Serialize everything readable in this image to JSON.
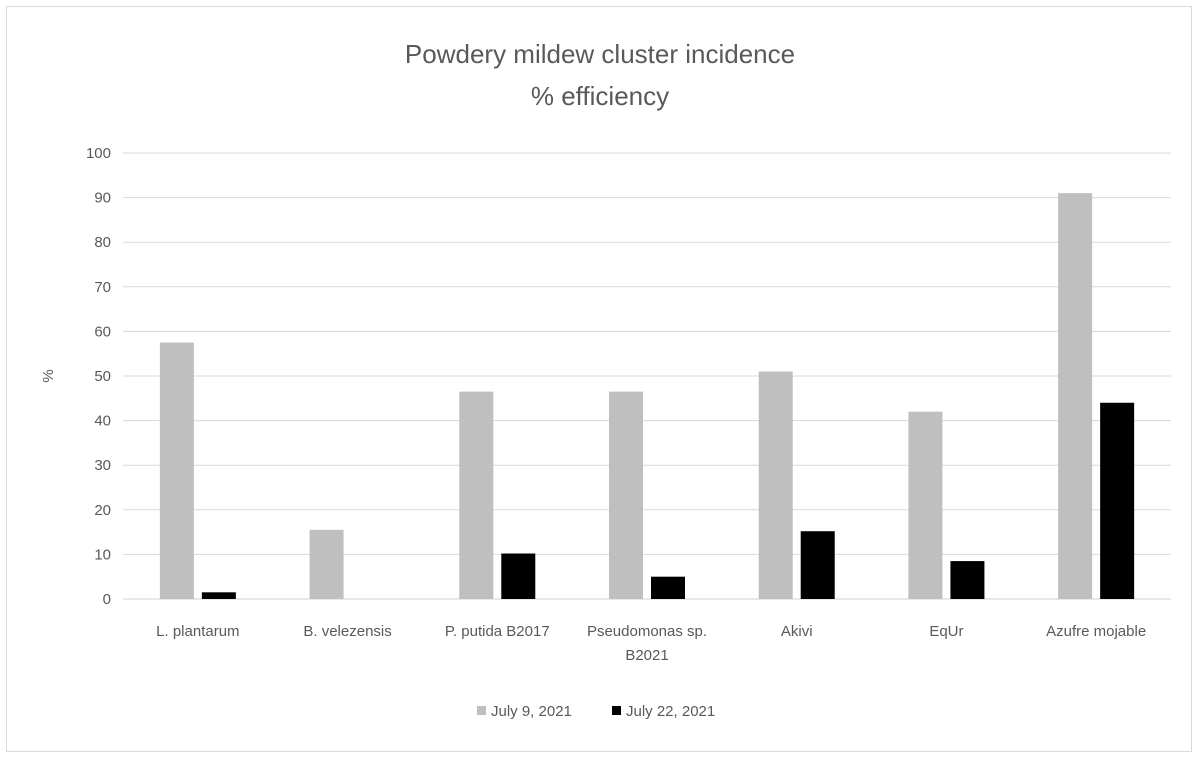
{
  "chart_data": {
    "type": "bar",
    "title": [
      "Powdery mildew cluster incidence",
      "% efficiency"
    ],
    "xlabel": "",
    "ylabel": "%",
    "ylim": [
      0,
      100
    ],
    "yticks": [
      0,
      10,
      20,
      30,
      40,
      50,
      60,
      70,
      80,
      90,
      100
    ],
    "grid": true,
    "legend_position": "bottom",
    "categories": [
      [
        "L. plantarum"
      ],
      [
        "B. velezensis"
      ],
      [
        "P. putida B2017"
      ],
      [
        "Pseudomonas sp.",
        "B2021"
      ],
      [
        "Akivi"
      ],
      [
        "EqUr"
      ],
      [
        "Azufre mojable"
      ]
    ],
    "series": [
      {
        "name": "July 9, 2021",
        "color": "#bfbfbf",
        "values": [
          57.5,
          15.5,
          46.5,
          46.5,
          51,
          42,
          91
        ]
      },
      {
        "name": "July 22, 2021",
        "color": "#000000",
        "values": [
          1.5,
          0,
          10.2,
          5,
          15.2,
          8.5,
          44
        ]
      }
    ]
  }
}
